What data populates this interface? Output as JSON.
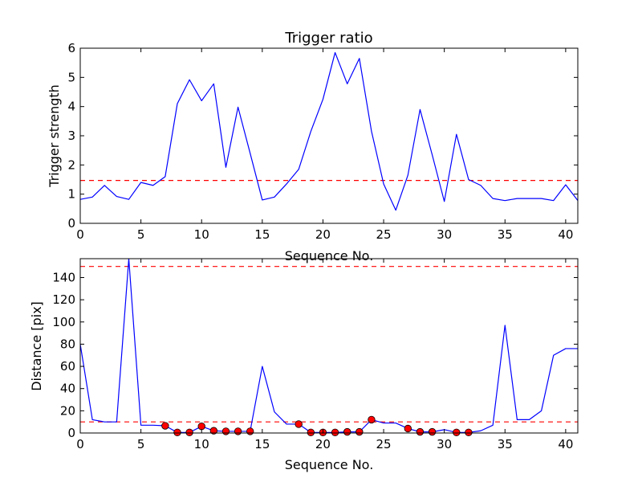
{
  "chart_data": [
    {
      "type": "line",
      "title": "Trigger ratio",
      "xlabel": "Sequence No.",
      "ylabel": "Trigger strength",
      "xlim": [
        0,
        41
      ],
      "ylim": [
        0,
        6
      ],
      "xticks": [
        0,
        5,
        10,
        15,
        20,
        25,
        30,
        35,
        40
      ],
      "yticks": [
        0,
        1,
        2,
        3,
        4,
        5,
        6
      ],
      "grid": false,
      "series": [
        {
          "color": "#0000ff",
          "x": [
            0,
            1,
            2,
            3,
            4,
            5,
            6,
            7,
            8,
            9,
            10,
            11,
            12,
            13,
            14,
            15,
            16,
            17,
            18,
            19,
            20,
            21,
            22,
            23,
            24,
            25,
            26,
            27,
            28,
            29,
            30,
            31,
            32,
            33,
            34,
            35,
            36,
            37,
            38,
            39,
            40,
            41
          ],
          "values": [
            0.82,
            0.9,
            1.3,
            0.92,
            0.82,
            1.4,
            1.3,
            1.6,
            4.1,
            4.92,
            4.2,
            4.78,
            1.92,
            3.98,
            2.4,
            0.8,
            0.9,
            1.35,
            1.85,
            3.15,
            4.25,
            5.85,
            4.78,
            5.65,
            3.15,
            1.35,
            0.45,
            1.65,
            3.9,
            2.35,
            0.75,
            3.05,
            1.5,
            1.3,
            0.85,
            0.78,
            0.85,
            0.85,
            0.85,
            0.78,
            1.32,
            0.78
          ]
        }
      ],
      "threshold": {
        "value": 1.47,
        "color": "#ff0000",
        "style": "dashed"
      }
    },
    {
      "type": "line",
      "title": "",
      "xlabel": "Sequence No.",
      "ylabel": "Distance [pix]",
      "xlim": [
        0,
        41
      ],
      "ylim": [
        0,
        157
      ],
      "xticks": [
        0,
        5,
        10,
        15,
        20,
        25,
        30,
        35,
        40
      ],
      "yticks": [
        0,
        20,
        40,
        60,
        80,
        100,
        120,
        140
      ],
      "grid": false,
      "series": [
        {
          "color": "#0000ff",
          "x": [
            0,
            1,
            2,
            3,
            4,
            5,
            6,
            7,
            8,
            9,
            10,
            11,
            12,
            13,
            14,
            15,
            16,
            17,
            18,
            19,
            20,
            21,
            22,
            23,
            24,
            25,
            26,
            27,
            28,
            29,
            30,
            31,
            32,
            33,
            34,
            35,
            36,
            37,
            38,
            39,
            40,
            41
          ],
          "values": [
            80,
            12,
            10,
            10,
            157,
            7,
            7,
            6.5,
            0.5,
            0.5,
            6,
            2,
            1.5,
            1.5,
            1.5,
            60,
            19,
            8,
            8,
            0.5,
            0.5,
            0.5,
            1,
            1,
            12,
            9,
            9,
            4,
            1,
            1,
            3,
            0.5,
            0.5,
            2,
            7,
            97,
            12,
            12,
            20,
            70,
            76,
            76
          ]
        }
      ],
      "markers": {
        "color": "#ff0000",
        "x": [
          7,
          8,
          9,
          10,
          11,
          12,
          13,
          14,
          18,
          19,
          20,
          21,
          22,
          23,
          24,
          27,
          28,
          29,
          31,
          32
        ],
        "values": [
          6.5,
          0.5,
          0.5,
          6,
          2,
          1.5,
          1.5,
          1.5,
          8,
          0.5,
          0.5,
          0.5,
          1,
          1,
          12,
          4,
          1,
          1,
          0.5,
          0.5
        ]
      },
      "thresholds": [
        {
          "value": 150,
          "color": "#ff0000",
          "style": "dashed"
        },
        {
          "value": 10,
          "color": "#ff0000",
          "style": "dashed"
        }
      ]
    }
  ]
}
